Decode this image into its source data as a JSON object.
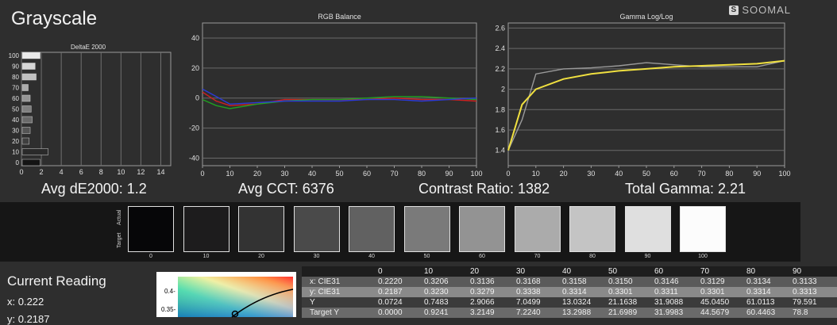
{
  "page": {
    "title": "Grayscale",
    "logo_text": "SOOMAL"
  },
  "stats": {
    "avg_de": "Avg dE2000: 1.2",
    "avg_cct": "Avg CCT: 6376",
    "contrast": "Contrast Ratio: 1382",
    "gamma": "Total Gamma: 2.21"
  },
  "swatches": {
    "actual_label": "Actual",
    "target_label": "Target",
    "items": [
      {
        "label": "0",
        "color": "#060608"
      },
      {
        "label": "10",
        "color": "#1d1c1d"
      },
      {
        "label": "20",
        "color": "#333333"
      },
      {
        "label": "30",
        "color": "#4a4a4a"
      },
      {
        "label": "40",
        "color": "#616161"
      },
      {
        "label": "50",
        "color": "#7a7a7a"
      },
      {
        "label": "60",
        "color": "#939393"
      },
      {
        "label": "70",
        "color": "#ababab"
      },
      {
        "label": "80",
        "color": "#c4c4c4"
      },
      {
        "label": "90",
        "color": "#dfdfdf"
      },
      {
        "label": "100",
        "color": "#fcfcfc"
      }
    ]
  },
  "current": {
    "title": "Current Reading",
    "x": "x: 0.222",
    "y": "y: 0.2187"
  },
  "cie_ticks": [
    "0.4-",
    "0.35-"
  ],
  "table": {
    "columns": [
      "0",
      "10",
      "20",
      "30",
      "40",
      "50",
      "60",
      "70",
      "80",
      "90"
    ],
    "rows": [
      {
        "label": "x: CIE31",
        "values": [
          "0.2220",
          "0.3206",
          "0.3136",
          "0.3168",
          "0.3158",
          "0.3150",
          "0.3146",
          "0.3129",
          "0.3134",
          "0.3133"
        ]
      },
      {
        "label": "y: CIE31",
        "values": [
          "0.2187",
          "0.3230",
          "0.3279",
          "0.3338",
          "0.3314",
          "0.3301",
          "0.3311",
          "0.3301",
          "0.3314",
          "0.3313"
        ]
      },
      {
        "label": "Y",
        "values": [
          "0.0724",
          "0.7483",
          "2.9066",
          "7.0499",
          "13.0324",
          "21.1638",
          "31.9088",
          "45.0450",
          "61.0113",
          "79.591"
        ]
      },
      {
        "label": "Target Y",
        "values": [
          "0.0000",
          "0.9241",
          "3.2149",
          "7.2240",
          "13.2988",
          "21.6989",
          "31.9983",
          "44.5679",
          "60.4463",
          "78.8"
        ]
      }
    ]
  },
  "chart_data": [
    {
      "type": "bar",
      "title": "DeltaE 2000",
      "orientation": "horizontal",
      "categories": [
        "0",
        "10",
        "20",
        "30",
        "40",
        "50",
        "60",
        "70",
        "80",
        "90",
        "100"
      ],
      "values": [
        1.8,
        2.6,
        0.7,
        0.8,
        1.0,
        0.9,
        0.8,
        0.6,
        1.4,
        1.3,
        1.8
      ],
      "xticks": [
        "0",
        "2",
        "4",
        "6",
        "8",
        "10",
        "12",
        "14"
      ],
      "xlim": [
        0,
        15
      ]
    },
    {
      "type": "line",
      "title": "RGB Balance",
      "x": [
        0,
        5,
        10,
        20,
        30,
        40,
        50,
        60,
        70,
        80,
        90,
        100
      ],
      "series": [
        {
          "color": "#d02020",
          "values": [
            4,
            -2,
            -5,
            -4,
            -1,
            -1,
            -1,
            -1,
            0,
            -1,
            -1,
            -2
          ]
        },
        {
          "color": "#20a020",
          "values": [
            -1,
            -5,
            -7,
            -4,
            -2,
            -1,
            -1,
            0,
            1,
            1,
            0,
            -1
          ]
        },
        {
          "color": "#2b3ad8",
          "values": [
            6,
            1,
            -4,
            -3,
            -2,
            -2,
            -2,
            -1,
            -1,
            -2,
            -1,
            0
          ]
        }
      ],
      "xticks": [
        "0",
        "10",
        "20",
        "30",
        "40",
        "50",
        "60",
        "70",
        "80",
        "90",
        "100"
      ],
      "yticks": [
        "40",
        "20",
        "0",
        "-20",
        "-40"
      ],
      "xlim": [
        0,
        100
      ],
      "ylim": [
        -45,
        50
      ]
    },
    {
      "type": "line",
      "title": "Gamma Log/Log",
      "x": [
        0,
        5,
        10,
        20,
        30,
        40,
        50,
        60,
        70,
        80,
        90,
        100
      ],
      "series": [
        {
          "color": "#9a9a9a",
          "values": [
            1.4,
            1.7,
            2.15,
            2.2,
            2.21,
            2.23,
            2.26,
            2.24,
            2.22,
            2.22,
            2.22,
            2.28
          ]
        },
        {
          "color": "#f0e040",
          "values": [
            1.4,
            1.85,
            2.0,
            2.1,
            2.15,
            2.18,
            2.2,
            2.22,
            2.23,
            2.24,
            2.25,
            2.28
          ]
        }
      ],
      "xticks": [
        "0",
        "10",
        "20",
        "30",
        "40",
        "50",
        "60",
        "70",
        "80",
        "90",
        "100"
      ],
      "yticks": [
        "2.6",
        "2.4",
        "2.2",
        "2",
        "1.8",
        "1.6",
        "1.4"
      ],
      "xlim": [
        0,
        100
      ],
      "ylim": [
        1.25,
        2.65
      ]
    }
  ]
}
